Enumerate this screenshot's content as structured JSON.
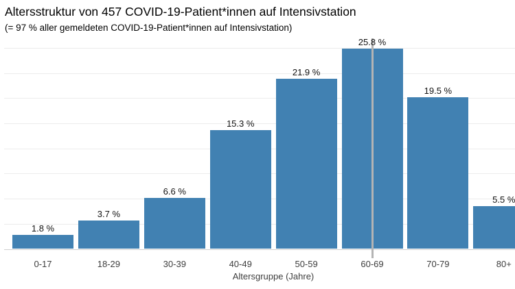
{
  "chart_data": {
    "type": "bar",
    "title": "Altersstruktur von 457 COVID-19-Patient*innen auf Intensivstation",
    "subtitle": "(= 97 % aller gemeldeten COVID-19-Patient*innen auf Intensivstation)",
    "xlabel": "Altersgruppe (Jahre)",
    "ylabel": "",
    "categories": [
      "0-17",
      "18-29",
      "30-39",
      "40-49",
      "50-59",
      "60-69",
      "70-79",
      "80+"
    ],
    "values": [
      1.8,
      3.7,
      6.6,
      15.3,
      21.9,
      25.8,
      19.5,
      5.5
    ],
    "value_labels": [
      "1.8 %",
      "3.7 %",
      "6.6 %",
      "15.3 %",
      "21.9 %",
      "25.8 %",
      "19.5 %",
      "5.5 %"
    ],
    "ylim": [
      0,
      27.3
    ],
    "grid": "horizontal",
    "legend": "none",
    "bar_color": "#4181b2",
    "grid_color": "#ececec",
    "baseline_color": "#cfcfcf",
    "label_color": "#111111",
    "tick_color": "#3c3c3c",
    "reference_line": {
      "category": "60-69",
      "color": "#b4b4b4"
    }
  }
}
